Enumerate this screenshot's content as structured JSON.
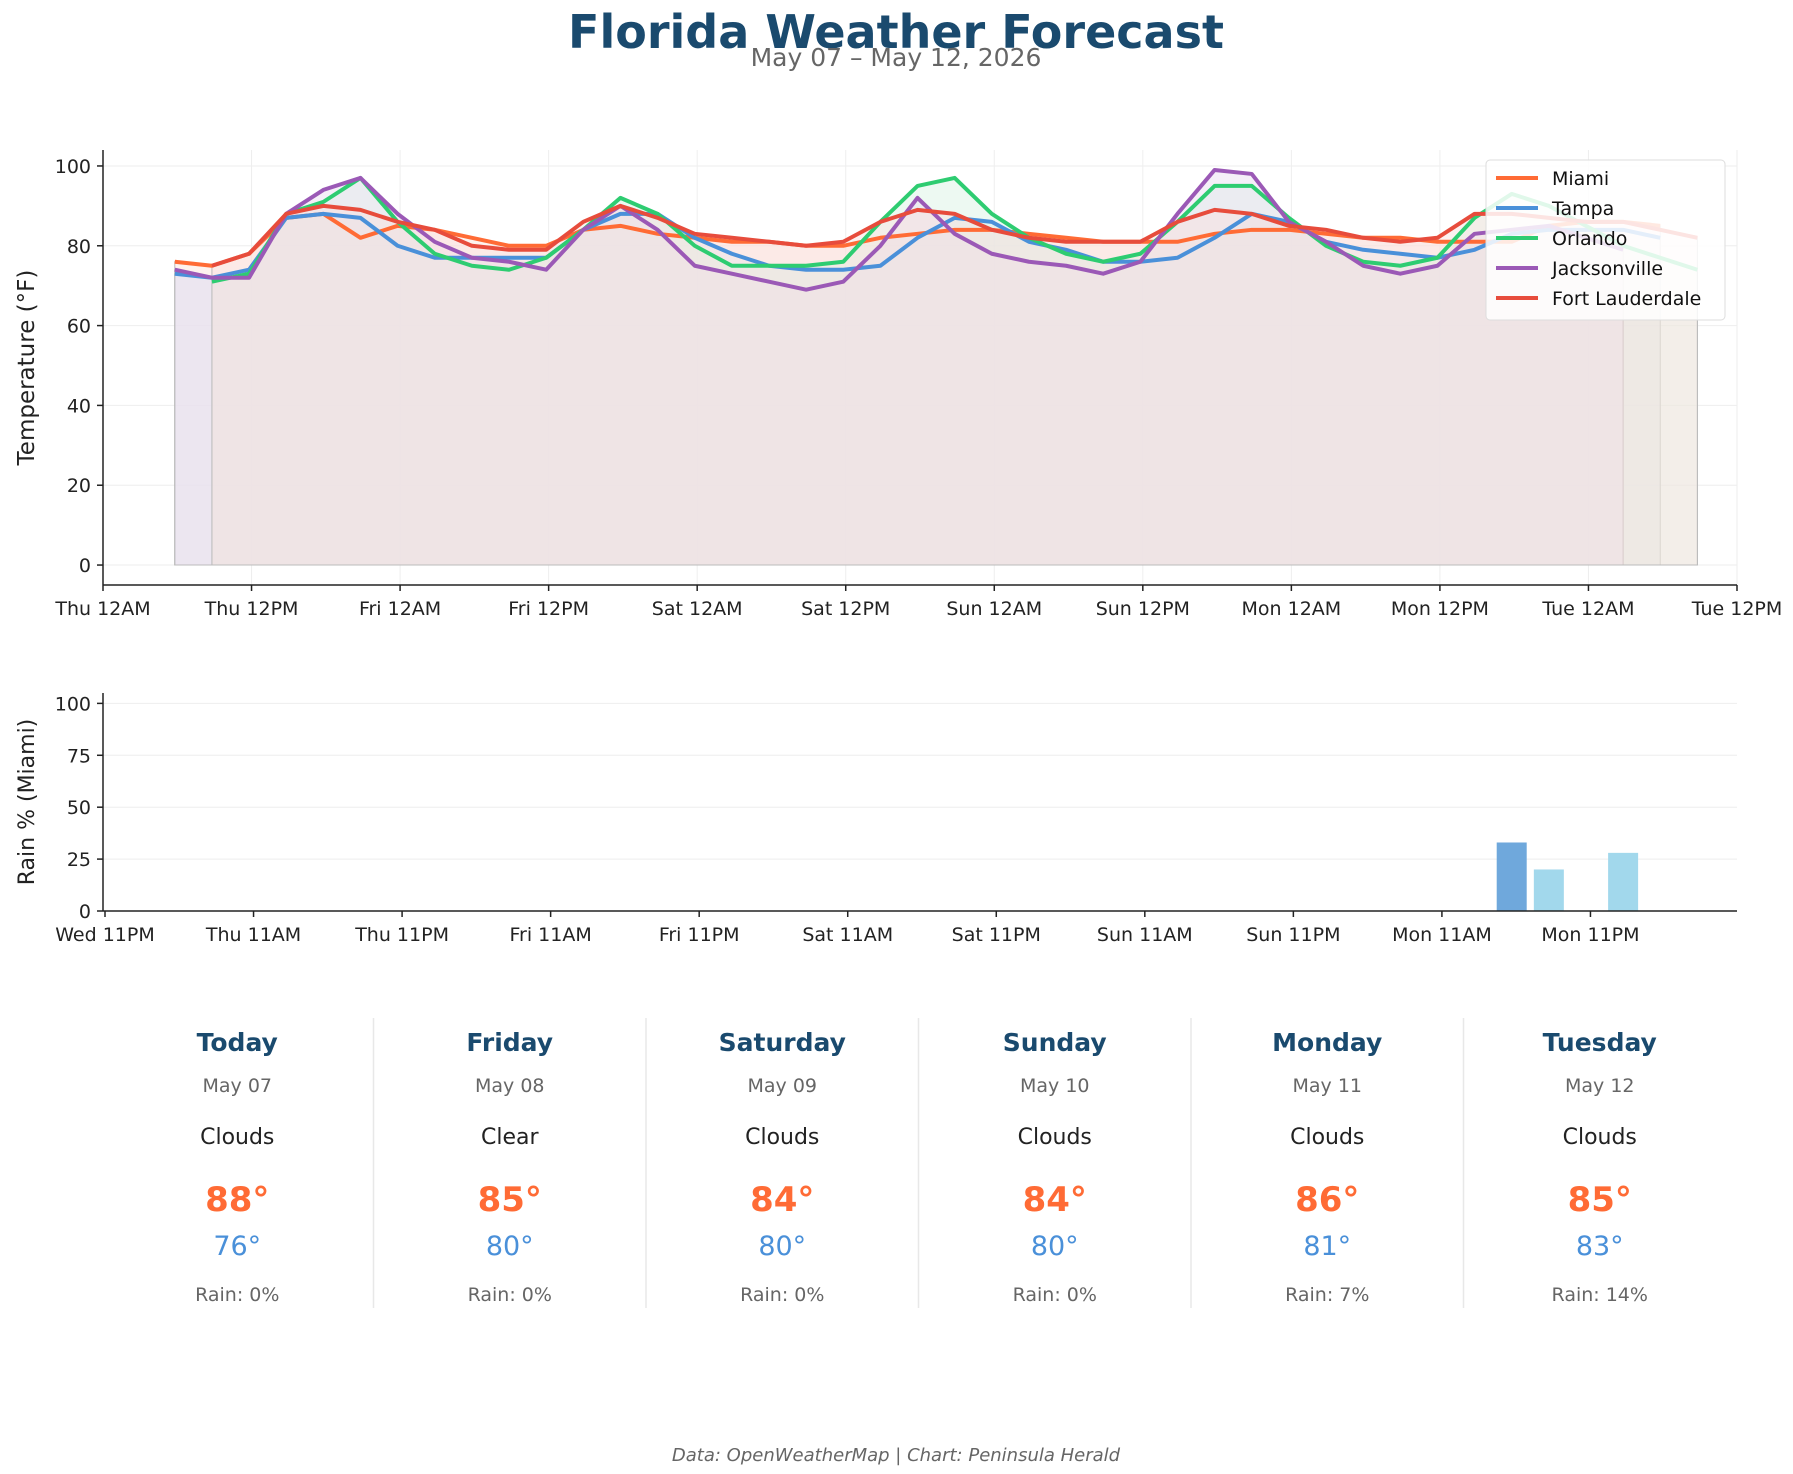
{
  "header": {
    "title": "Florida Weather Forecast",
    "subtitle": "May 07 – May 12, 2026"
  },
  "colors": {
    "title": "#1a4a6e",
    "subtitle": "#666666",
    "high": "#ff6b35",
    "low": "#4a90d9",
    "rain_bar_heavy": "#6fa8dc",
    "rain_bar_light": "#a2d8ec",
    "axis": "#222222",
    "grid": "#eeeeee"
  },
  "chart_data": [
    {
      "type": "line",
      "subtype": "area-filled line",
      "ylabel": "Temperature (°F)",
      "xlabel": "",
      "ylim": [
        -5,
        104
      ],
      "yticks": [
        0,
        20,
        40,
        60,
        80,
        100
      ],
      "x_range_hours": [
        0,
        132
      ],
      "xtick_labels": [
        "Thu 12AM",
        "Thu 12PM",
        "Fri 12AM",
        "Fri 12PM",
        "Sat 12AM",
        "Sat 12PM",
        "Sun 12AM",
        "Sun 12PM",
        "Mon 12AM",
        "Mon 12PM",
        "Tue 12AM",
        "Tue 12PM"
      ],
      "x_unit_note": "hours from Thu 12AM (May 07), 3-hour forecast steps",
      "legend_position": "top-right",
      "grid": true,
      "series": [
        {
          "name": "Miami",
          "color": "#ff6b35",
          "fill": "#fde3da",
          "x": [
            5.8,
            8.8,
            11.8,
            14.8,
            17.8,
            20.8,
            23.8,
            26.8,
            29.8,
            32.8,
            35.8,
            38.8,
            41.8,
            44.8,
            47.8,
            50.8,
            53.8,
            56.8,
            59.8,
            62.8,
            65.8,
            68.8,
            71.8,
            74.8,
            77.8,
            80.8,
            83.8,
            86.8,
            89.8,
            92.8,
            95.8,
            98.8,
            101.8,
            104.8,
            107.8,
            110.8,
            113.8,
            116.8,
            119.8,
            122.8,
            125.8
          ],
          "values": [
            76,
            75,
            78,
            87,
            88,
            82,
            85,
            84,
            82,
            80,
            80,
            84,
            85,
            83,
            82,
            81,
            81,
            80,
            80,
            82,
            83,
            84,
            84,
            83,
            82,
            81,
            81,
            81,
            83,
            84,
            84,
            83,
            82,
            82,
            81,
            81,
            81,
            85,
            86,
            86,
            85
          ]
        },
        {
          "name": "Tampa",
          "color": "#4a90d9",
          "fill": "#dce8f5",
          "x": [
            5.8,
            8.8,
            11.8,
            14.8,
            17.8,
            20.8,
            23.8,
            26.8,
            29.8,
            32.8,
            35.8,
            38.8,
            41.8,
            44.8,
            47.8,
            50.8,
            53.8,
            56.8,
            59.8,
            62.8,
            65.8,
            68.8,
            71.8,
            74.8,
            77.8,
            80.8,
            83.8,
            86.8,
            89.8,
            92.8,
            95.8,
            98.8,
            101.8,
            104.8,
            107.8,
            110.8,
            113.8,
            116.8,
            119.8,
            122.8,
            125.8
          ],
          "values": [
            73,
            72,
            74,
            87,
            88,
            87,
            80,
            77,
            77,
            77,
            77,
            84,
            88,
            88,
            82,
            78,
            75,
            74,
            74,
            75,
            82,
            87,
            86,
            81,
            79,
            76,
            76,
            77,
            82,
            88,
            86,
            81,
            79,
            78,
            77,
            79,
            83,
            84,
            84,
            84,
            82
          ]
        },
        {
          "name": "Orlando",
          "color": "#2ecc71",
          "fill": "#d8f1e2",
          "x": [
            8.8,
            11.8,
            14.8,
            17.8,
            20.8,
            23.8,
            26.8,
            29.8,
            32.8,
            35.8,
            38.8,
            41.8,
            44.8,
            47.8,
            50.8,
            53.8,
            56.8,
            59.8,
            62.8,
            65.8,
            68.8,
            71.8,
            74.8,
            77.8,
            80.8,
            83.8,
            86.8,
            89.8,
            92.8,
            95.8,
            98.8,
            101.8,
            104.8,
            107.8,
            110.8,
            113.8,
            116.8,
            119.8,
            122.8,
            125.8,
            128.8
          ],
          "values": [
            71,
            73,
            88,
            91,
            97,
            86,
            78,
            75,
            74,
            77,
            84,
            92,
            88,
            80,
            75,
            75,
            75,
            76,
            86,
            95,
            97,
            88,
            82,
            78,
            76,
            78,
            86,
            95,
            95,
            87,
            80,
            76,
            75,
            77,
            87,
            93,
            90,
            85,
            80,
            77,
            74
          ]
        },
        {
          "name": "Jacksonville",
          "color": "#9b59b6",
          "fill": "#e8dcef",
          "x": [
            5.8,
            8.8,
            11.8,
            14.8,
            17.8,
            20.8,
            23.8,
            26.8,
            29.8,
            32.8,
            35.8,
            38.8,
            41.8,
            44.8,
            47.8,
            50.8,
            53.8,
            56.8,
            59.8,
            62.8,
            65.8,
            68.8,
            71.8,
            74.8,
            77.8,
            80.8,
            83.8,
            86.8,
            89.8,
            92.8,
            95.8,
            98.8,
            101.8,
            104.8,
            107.8,
            110.8,
            113.8,
            116.8,
            119.8,
            122.8
          ],
          "values": [
            74,
            72,
            72,
            88,
            94,
            97,
            88,
            81,
            77,
            76,
            74,
            84,
            90,
            84,
            75,
            73,
            71,
            69,
            71,
            80,
            92,
            83,
            78,
            76,
            75,
            73,
            76,
            88,
            99,
            98,
            86,
            81,
            75,
            73,
            75,
            83,
            84,
            85,
            82,
            79
          ]
        },
        {
          "name": "Fort Lauderdale",
          "color": "#e74c3c",
          "fill": "#fbe1dd",
          "x": [
            8.8,
            11.8,
            14.8,
            17.8,
            20.8,
            23.8,
            26.8,
            29.8,
            32.8,
            35.8,
            38.8,
            41.8,
            44.8,
            47.8,
            50.8,
            53.8,
            56.8,
            59.8,
            62.8,
            65.8,
            68.8,
            71.8,
            74.8,
            77.8,
            80.8,
            83.8,
            86.8,
            89.8,
            92.8,
            95.8,
            98.8,
            101.8,
            104.8,
            107.8,
            110.8,
            113.8,
            116.8,
            119.8,
            122.8,
            125.8,
            128.8
          ],
          "values": [
            75,
            78,
            88,
            90,
            89,
            86,
            84,
            80,
            79,
            79,
            86,
            90,
            87,
            83,
            82,
            81,
            80,
            81,
            86,
            89,
            88,
            84,
            82,
            81,
            81,
            81,
            86,
            89,
            88,
            85,
            84,
            82,
            81,
            82,
            88,
            88,
            87,
            86,
            86,
            84,
            82
          ]
        }
      ]
    },
    {
      "type": "bar",
      "ylabel": "Rain % (Miami)",
      "xlabel": "",
      "ylim": [
        0,
        105
      ],
      "yticks": [
        0,
        25,
        50,
        75,
        100
      ],
      "x_range_hours": [
        0,
        132
      ],
      "xtick_labels": [
        "Wed 11PM",
        "Thu 11AM",
        "Thu 11PM",
        "Fri 11AM",
        "Fri 11PM",
        "Sat 11AM",
        "Sat 11PM",
        "Sun 11AM",
        "Sun 11PM",
        "Mon 11AM",
        "Mon 11PM"
      ],
      "grid": true,
      "bars": [
        {
          "x": 113.8,
          "value": 33,
          "color": "#6fa8dc"
        },
        {
          "x": 116.8,
          "value": 20,
          "color": "#a2d8ec"
        },
        {
          "x": 122.8,
          "value": 28,
          "color": "#a2d8ec"
        }
      ]
    }
  ],
  "days": [
    {
      "name": "Today",
      "date": "May 07",
      "condition": "Clouds",
      "high": "88°",
      "low": "76°",
      "rain": "Rain: 0%"
    },
    {
      "name": "Friday",
      "date": "May 08",
      "condition": "Clear",
      "high": "85°",
      "low": "80°",
      "rain": "Rain: 0%"
    },
    {
      "name": "Saturday",
      "date": "May 09",
      "condition": "Clouds",
      "high": "84°",
      "low": "80°",
      "rain": "Rain: 0%"
    },
    {
      "name": "Sunday",
      "date": "May 10",
      "condition": "Clouds",
      "high": "84°",
      "low": "80°",
      "rain": "Rain: 0%"
    },
    {
      "name": "Monday",
      "date": "May 11",
      "condition": "Clouds",
      "high": "86°",
      "low": "81°",
      "rain": "Rain: 7%"
    },
    {
      "name": "Tuesday",
      "date": "May 12",
      "condition": "Clouds",
      "high": "85°",
      "low": "83°",
      "rain": "Rain: 14%"
    }
  ],
  "footer": {
    "credit": "Data: OpenWeatherMap | Chart: Peninsula Herald"
  }
}
